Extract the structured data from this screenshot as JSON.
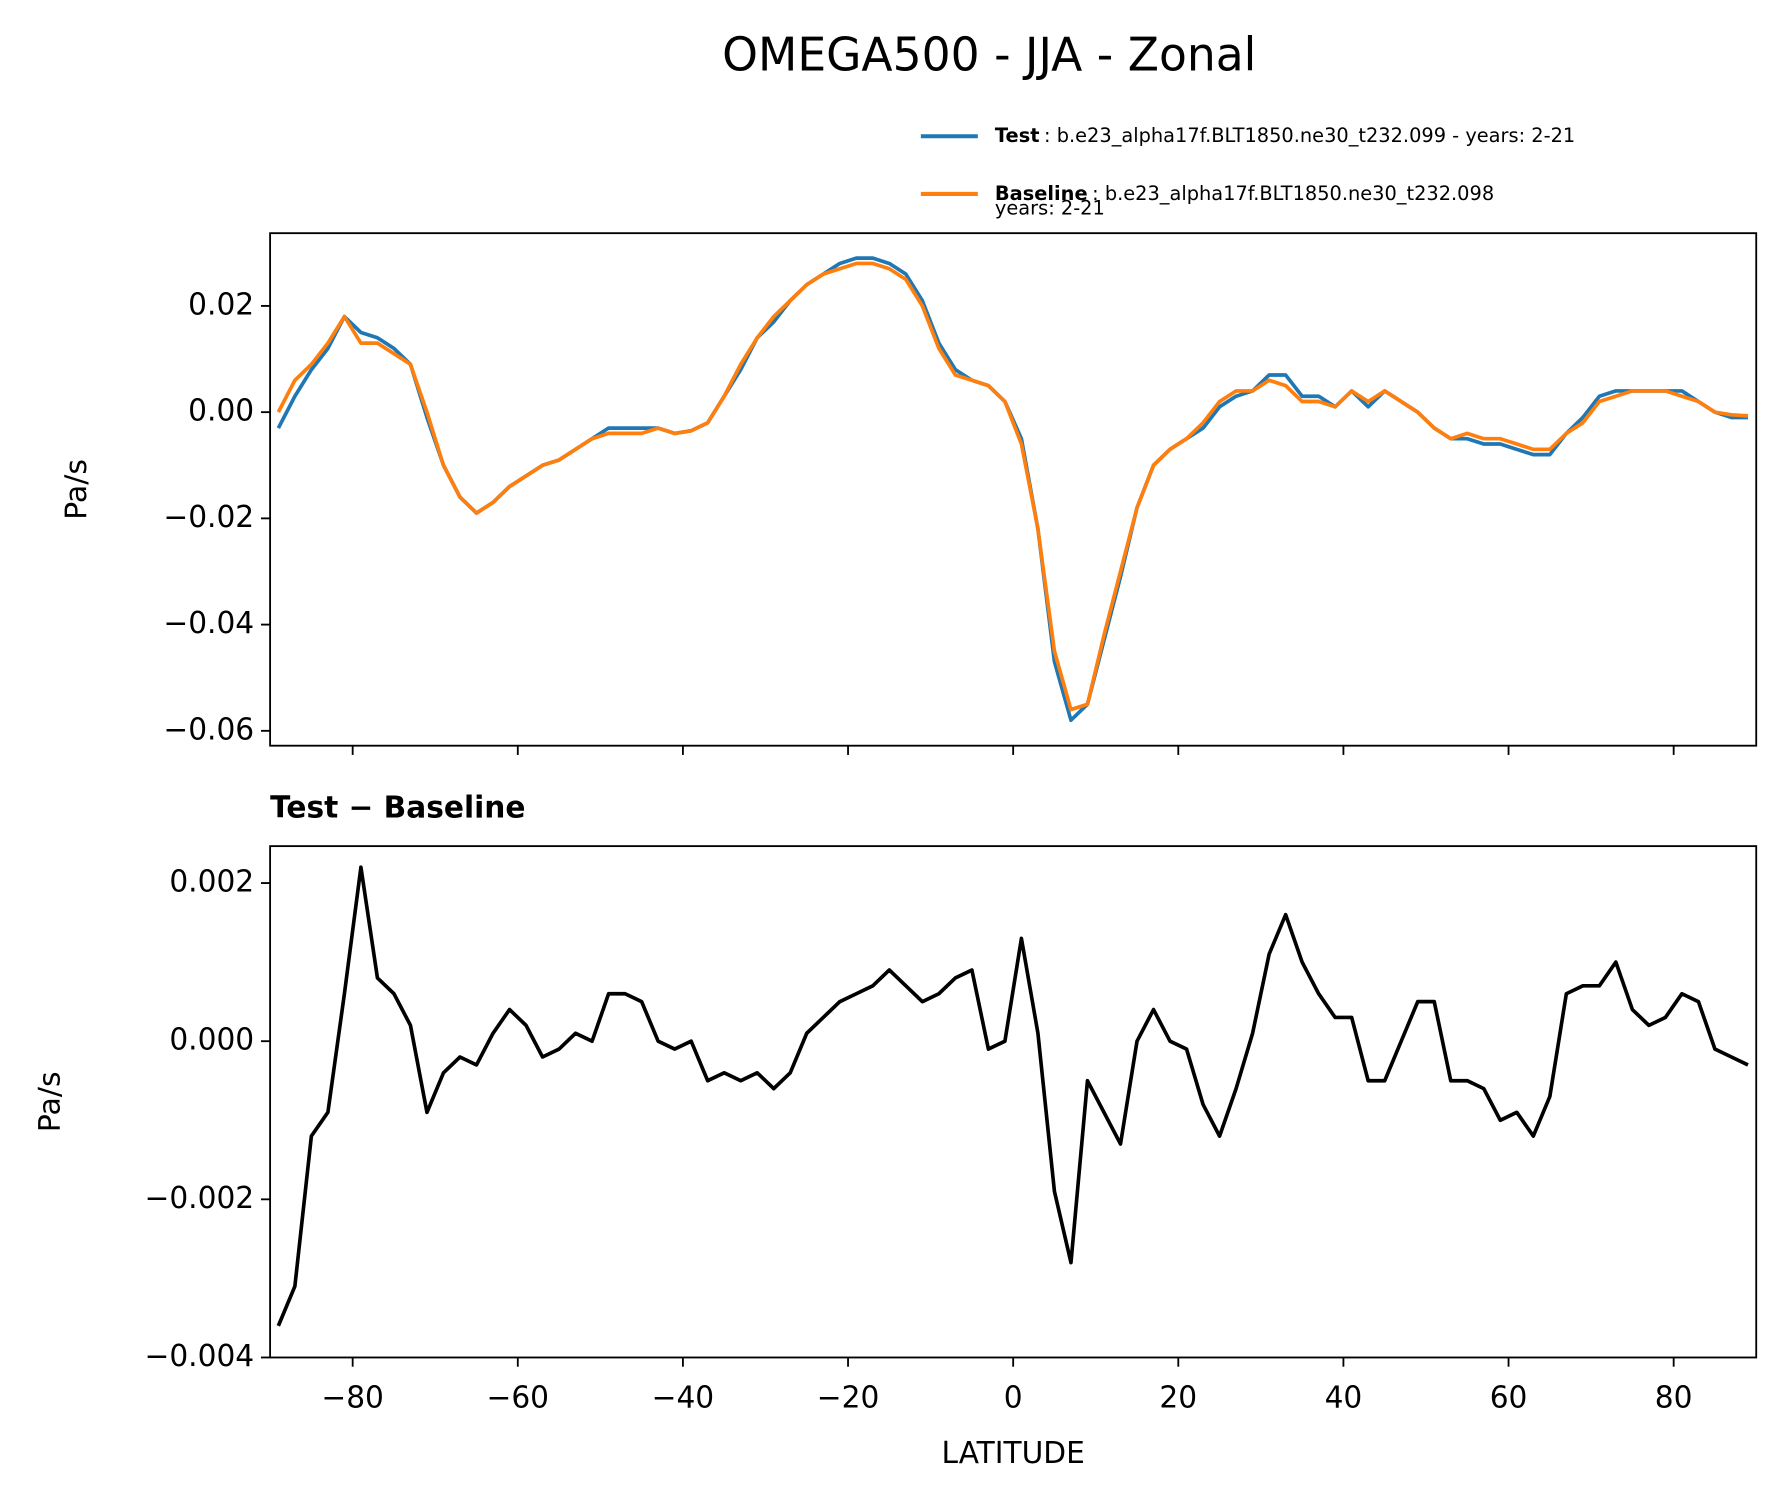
{
  "title": "OMEGA500 - JJA - Zonal",
  "chart_data": [
    {
      "type": "line",
      "ylabel": "Pa/s",
      "x": [
        -89,
        -87,
        -85,
        -83,
        -81,
        -79,
        -77,
        -75,
        -73,
        -71,
        -69,
        -67,
        -65,
        -63,
        -61,
        -59,
        -57,
        -55,
        -53,
        -51,
        -49,
        -47,
        -45,
        -43,
        -41,
        -39,
        -37,
        -35,
        -33,
        -31,
        -29,
        -27,
        -25,
        -23,
        -21,
        -19,
        -17,
        -15,
        -13,
        -11,
        -9,
        -7,
        -5,
        -3,
        -1,
        1,
        3,
        5,
        7,
        9,
        11,
        13,
        15,
        17,
        19,
        21,
        23,
        25,
        27,
        29,
        31,
        33,
        35,
        37,
        39,
        41,
        43,
        45,
        47,
        49,
        51,
        53,
        55,
        57,
        59,
        61,
        63,
        65,
        67,
        69,
        71,
        73,
        75,
        77,
        79,
        81,
        83,
        85,
        87,
        89
      ],
      "series": [
        {
          "name": "Test",
          "description": ": b.e23_alpha17f.BLT1850.ne30_t232.099 - years: 2-21",
          "color": "#1f77b4",
          "values": [
            -0.003,
            0.003,
            0.008,
            0.012,
            0.018,
            0.015,
            0.014,
            0.012,
            0.009,
            -0.001,
            -0.01,
            -0.016,
            -0.019,
            -0.017,
            -0.014,
            -0.012,
            -0.01,
            -0.009,
            -0.007,
            -0.005,
            -0.003,
            -0.003,
            -0.003,
            -0.003,
            -0.004,
            -0.0035,
            -0.002,
            0.003,
            0.008,
            0.014,
            0.017,
            0.021,
            0.024,
            0.026,
            0.028,
            0.029,
            0.029,
            0.028,
            0.026,
            0.021,
            0.013,
            0.008,
            0.006,
            0.005,
            0.002,
            -0.005,
            -0.022,
            -0.047,
            -0.058,
            -0.055,
            -0.043,
            -0.031,
            -0.018,
            -0.01,
            -0.007,
            -0.005,
            -0.003,
            0.001,
            0.003,
            0.004,
            0.007,
            0.007,
            0.003,
            0.003,
            0.001,
            0.004,
            0.001,
            0.004,
            0.002,
            0.0,
            -0.003,
            -0.005,
            -0.005,
            -0.006,
            -0.006,
            -0.007,
            -0.008,
            -0.008,
            -0.004,
            -0.001,
            0.003,
            0.004,
            0.004,
            0.004,
            0.004,
            0.004,
            0.002,
            0.0,
            -0.001,
            -0.001
          ]
        },
        {
          "name": "Baseline",
          "description": [
            ": b.e23_alpha17f.BLT1850.ne30_t232.098",
            "years: 2-21"
          ],
          "color": "#ff7f0e",
          "values": [
            0.0,
            0.006,
            0.009,
            0.013,
            0.018,
            0.013,
            0.013,
            0.011,
            0.009,
            0.0,
            -0.01,
            -0.016,
            -0.019,
            -0.017,
            -0.014,
            -0.012,
            -0.01,
            -0.009,
            -0.007,
            -0.005,
            -0.004,
            -0.004,
            -0.004,
            -0.003,
            -0.004,
            -0.0035,
            -0.002,
            0.003,
            0.009,
            0.014,
            0.018,
            0.021,
            0.024,
            0.026,
            0.027,
            0.028,
            0.028,
            0.027,
            0.025,
            0.02,
            0.012,
            0.007,
            0.006,
            0.005,
            0.002,
            -0.006,
            -0.022,
            -0.045,
            -0.056,
            -0.055,
            -0.042,
            -0.03,
            -0.018,
            -0.01,
            -0.007,
            -0.005,
            -0.002,
            0.002,
            0.004,
            0.004,
            0.006,
            0.005,
            0.002,
            0.002,
            0.001,
            0.004,
            0.002,
            0.004,
            0.002,
            0.0,
            -0.003,
            -0.005,
            -0.004,
            -0.005,
            -0.005,
            -0.006,
            -0.007,
            -0.007,
            -0.004,
            -0.002,
            0.002,
            0.003,
            0.004,
            0.004,
            0.004,
            0.003,
            0.002,
            0.0,
            -0.0005,
            -0.0007
          ]
        }
      ],
      "xlim": [
        -90,
        90
      ],
      "xticks": [
        -80,
        -60,
        -40,
        -20,
        0,
        20,
        40,
        60,
        80
      ],
      "ylim": [
        -0.0628,
        0.0337
      ],
      "yticks": [
        {
          "value": 0.02,
          "label": "0.02"
        },
        {
          "value": 0,
          "label": "0.00"
        },
        {
          "value": -0.02,
          "label": "−0.02"
        },
        {
          "value": -0.04,
          "label": "−0.04"
        },
        {
          "value": -0.06,
          "label": "−0.06"
        }
      ]
    },
    {
      "type": "line",
      "title": "Test − Baseline",
      "ylabel": "Pa/s",
      "xlabel": "LATITUDE",
      "x": [
        -89,
        -87,
        -85,
        -83,
        -81,
        -79,
        -77,
        -75,
        -73,
        -71,
        -69,
        -67,
        -65,
        -63,
        -61,
        -59,
        -57,
        -55,
        -53,
        -51,
        -49,
        -47,
        -45,
        -43,
        -41,
        -39,
        -37,
        -35,
        -33,
        -31,
        -29,
        -27,
        -25,
        -23,
        -21,
        -19,
        -17,
        -15,
        -13,
        -11,
        -9,
        -7,
        -5,
        -3,
        -1,
        1,
        3,
        5,
        7,
        9,
        11,
        13,
        15,
        17,
        19,
        21,
        23,
        25,
        27,
        29,
        31,
        33,
        35,
        37,
        39,
        41,
        43,
        45,
        47,
        49,
        51,
        53,
        55,
        57,
        59,
        61,
        63,
        65,
        67,
        69,
        71,
        73,
        75,
        77,
        79,
        81,
        83,
        85,
        87,
        89
      ],
      "color": "#000000",
      "values": [
        -0.0036,
        -0.0031,
        -0.0012,
        -0.0009,
        0.0006,
        0.0022,
        0.0008,
        0.0006,
        0.0002,
        -0.0009,
        -0.0004,
        -0.0002,
        -0.0003,
        0.0001,
        0.0004,
        0.0002,
        -0.0002,
        -0.0001,
        0.0001,
        0.0,
        0.0006,
        0.0006,
        0.0005,
        0.0,
        -0.0001,
        0.0,
        -0.0005,
        -0.0004,
        -0.0005,
        -0.0004,
        -0.0006,
        -0.0004,
        0.0001,
        0.0003,
        0.0005,
        0.0006,
        0.0007,
        0.0009,
        0.0007,
        0.0005,
        0.0006,
        0.0008,
        0.0009,
        -0.0001,
        0.0,
        0.0013,
        0.0001,
        -0.0019,
        -0.0028,
        -0.0005,
        -0.0009,
        -0.0013,
        0.0,
        0.0004,
        0.0,
        -0.0001,
        -0.0008,
        -0.0012,
        -0.0006,
        0.0001,
        0.0011,
        0.0016,
        0.001,
        0.0006,
        0.0003,
        0.0003,
        -0.0005,
        -0.0005,
        0.0,
        0.0005,
        0.0005,
        -0.0005,
        -0.0005,
        -0.0006,
        -0.001,
        -0.0009,
        -0.0012,
        -0.0007,
        0.0006,
        0.0007,
        0.0007,
        0.001,
        0.0004,
        0.0002,
        0.0003,
        0.0006,
        0.0005,
        -0.0001,
        -0.0002,
        -0.0003
      ],
      "xlim": [
        -90,
        90
      ],
      "xticks": [
        {
          "value": -80,
          "label": "−80"
        },
        {
          "value": -60,
          "label": "−60"
        },
        {
          "value": -40,
          "label": "−40"
        },
        {
          "value": -20,
          "label": "−20"
        },
        0,
        20,
        40,
        60,
        80
      ],
      "ylim": [
        -0.004,
        0.002467
      ],
      "yticks": [
        {
          "value": 0.002,
          "label": "0.002"
        },
        {
          "value": 0,
          "label": "0.000"
        },
        {
          "value": -0.002,
          "label": "−0.002"
        },
        {
          "value": -0.004,
          "label": "−0.004"
        }
      ]
    }
  ]
}
